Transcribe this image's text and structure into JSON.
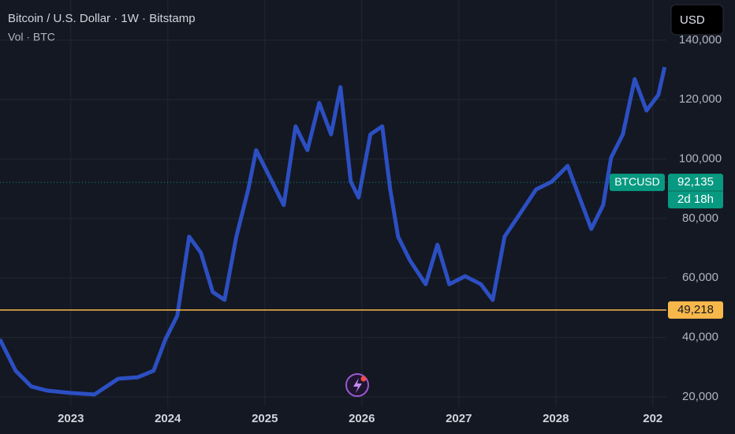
{
  "header": {
    "title": "Bitcoin / U.S. Dollar · 1W · Bitstamp",
    "subtitle": "Vol · BTC",
    "currency": "USD"
  },
  "chart_data": {
    "type": "line",
    "x": [
      2022.268,
      2022.431,
      2022.593,
      2022.756,
      2023.0,
      2023.244,
      2023.488,
      2023.691,
      2023.854,
      2023.976,
      2024.098,
      2024.22,
      2024.341,
      2024.463,
      2024.585,
      2024.707,
      2024.829,
      2024.911,
      2025.033,
      2025.195,
      2025.317,
      2025.439,
      2025.561,
      2025.683,
      2025.78,
      2025.886,
      2025.967,
      2026.089,
      2026.211,
      2026.293,
      2026.374,
      2026.496,
      2026.659,
      2026.78,
      2026.902,
      2027.065,
      2027.228,
      2027.35,
      2027.472,
      2027.634,
      2027.797,
      2027.959,
      2028.122,
      2028.244,
      2028.366,
      2028.488,
      2028.569,
      2028.691,
      2028.813,
      2028.935,
      2029.057,
      2029.122
    ],
    "series": [
      {
        "name": "BTCUSD",
        "color": "#2f55d4",
        "values": [
          39400,
          28800,
          23500,
          22100,
          21300,
          20800,
          26100,
          26600,
          28800,
          39400,
          47300,
          73900,
          68500,
          55300,
          52600,
          73900,
          89800,
          103000,
          95100,
          84500,
          111000,
          103000,
          118900,
          108300,
          124200,
          92400,
          87100,
          108300,
          111000,
          89800,
          73900,
          65900,
          57900,
          71200,
          57900,
          60600,
          57900,
          52600,
          73900,
          81800,
          89800,
          92400,
          97700,
          87100,
          76500,
          84500,
          100400,
          108300,
          126900,
          116300,
          121600,
          130900
        ]
      }
    ],
    "xlim": [
      2022.27,
      2029.14
    ],
    "ylim": [
      16800,
      153500
    ],
    "xticks": [
      2023,
      2024,
      2025,
      2026,
      2027,
      2028,
      {
        "value": 2029,
        "label": "202"
      }
    ],
    "yticks": [
      {
        "value": 20000,
        "label": "20,000"
      },
      {
        "value": 40000,
        "label": "40,000"
      },
      {
        "value": 60000,
        "label": "60,000"
      },
      {
        "value": 80000,
        "label": "80,000"
      },
      {
        "value": 100000,
        "label": "100,000"
      },
      {
        "value": 120000,
        "label": "120,000"
      },
      {
        "value": 140000,
        "label": "140,000"
      }
    ],
    "grid": true,
    "price_lines": [
      {
        "value": 92135,
        "label": "92,135",
        "color": "#089981",
        "countdown": "2d 18h"
      },
      {
        "value": 49218,
        "label": "49,218",
        "color": "#f7b84b"
      }
    ]
  }
}
